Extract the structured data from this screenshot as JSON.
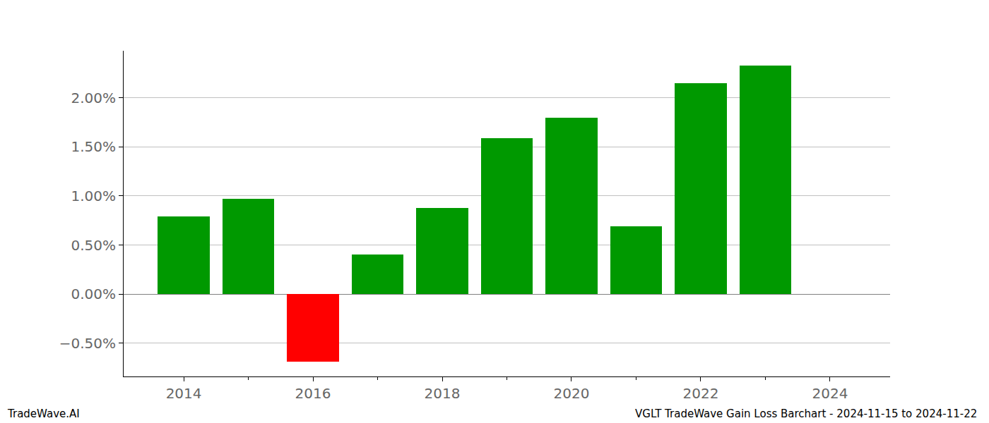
{
  "chart_data": {
    "type": "bar",
    "x": [
      2014,
      2015,
      2016,
      2017,
      2018,
      2019,
      2020,
      2021,
      2022,
      2023
    ],
    "values": [
      0.79,
      0.97,
      -0.69,
      0.4,
      0.88,
      1.59,
      1.8,
      0.69,
      2.15,
      2.33
    ],
    "colors": [
      "#009900",
      "#009900",
      "#ff0000",
      "#009900",
      "#009900",
      "#009900",
      "#009900",
      "#009900",
      "#009900",
      "#009900"
    ],
    "xlim": [
      2013.07,
      2024.93
    ],
    "xticks": [
      2014,
      2016,
      2018,
      2020,
      2022,
      2024
    ],
    "ylim": [
      -0.84,
      2.48
    ],
    "yticks": [
      {
        "value": -0.5,
        "label": "−0.50%"
      },
      {
        "value": 0,
        "label": "0.00%"
      },
      {
        "value": 0.5,
        "label": "0.50%"
      },
      {
        "value": 1,
        "label": "1.00%"
      },
      {
        "value": 1.5,
        "label": "1.50%"
      },
      {
        "value": 2,
        "label": "2.00%"
      }
    ],
    "grid": true,
    "annotations": [
      "TradeWave.AI",
      "VGLT TradeWave Gain Loss Barchart - 2024-11-15 to 2024-11-22"
    ]
  }
}
